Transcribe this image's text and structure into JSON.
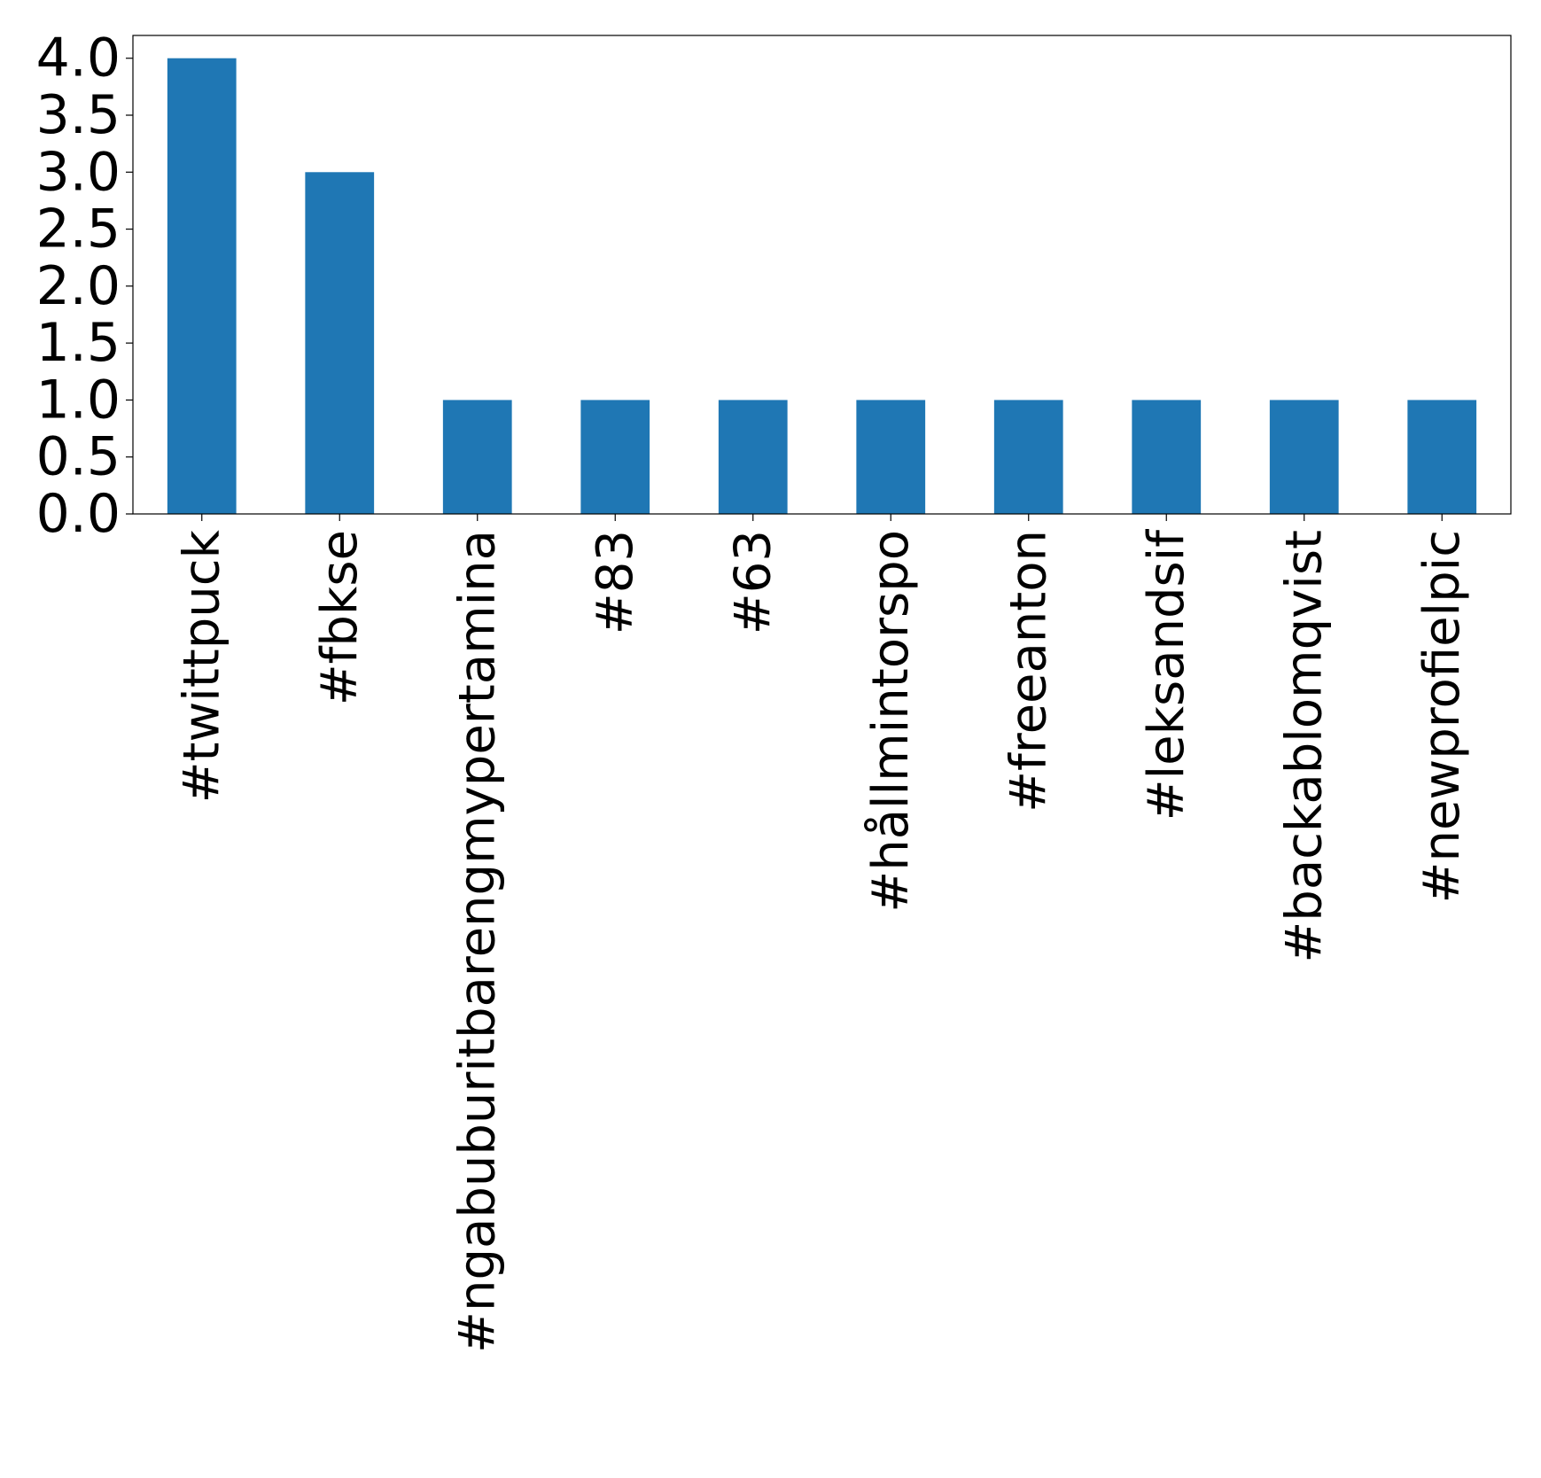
{
  "chart_data": {
    "type": "bar",
    "title": "",
    "xlabel": "",
    "ylabel": "",
    "categories": [
      "#twittpuck",
      "#fbkse",
      "#ngabuburitbarengmypertamina",
      "#83",
      "#63",
      "#hållmintorspo",
      "#freeanton",
      "#leksandsif",
      "#backablomqvist",
      "#newprofielpic"
    ],
    "values": [
      4,
      3,
      1,
      1,
      1,
      1,
      1,
      1,
      1,
      1
    ],
    "ylim": [
      0,
      4.2
    ],
    "yticks": [
      "0.0",
      "0.5",
      "1.0",
      "1.5",
      "2.0",
      "2.5",
      "3.0",
      "3.5",
      "4.0"
    ],
    "grid": false,
    "legend": "none",
    "colors": {
      "bar": "#1f77b4",
      "axis": "#000000",
      "background": "#ffffff"
    }
  }
}
